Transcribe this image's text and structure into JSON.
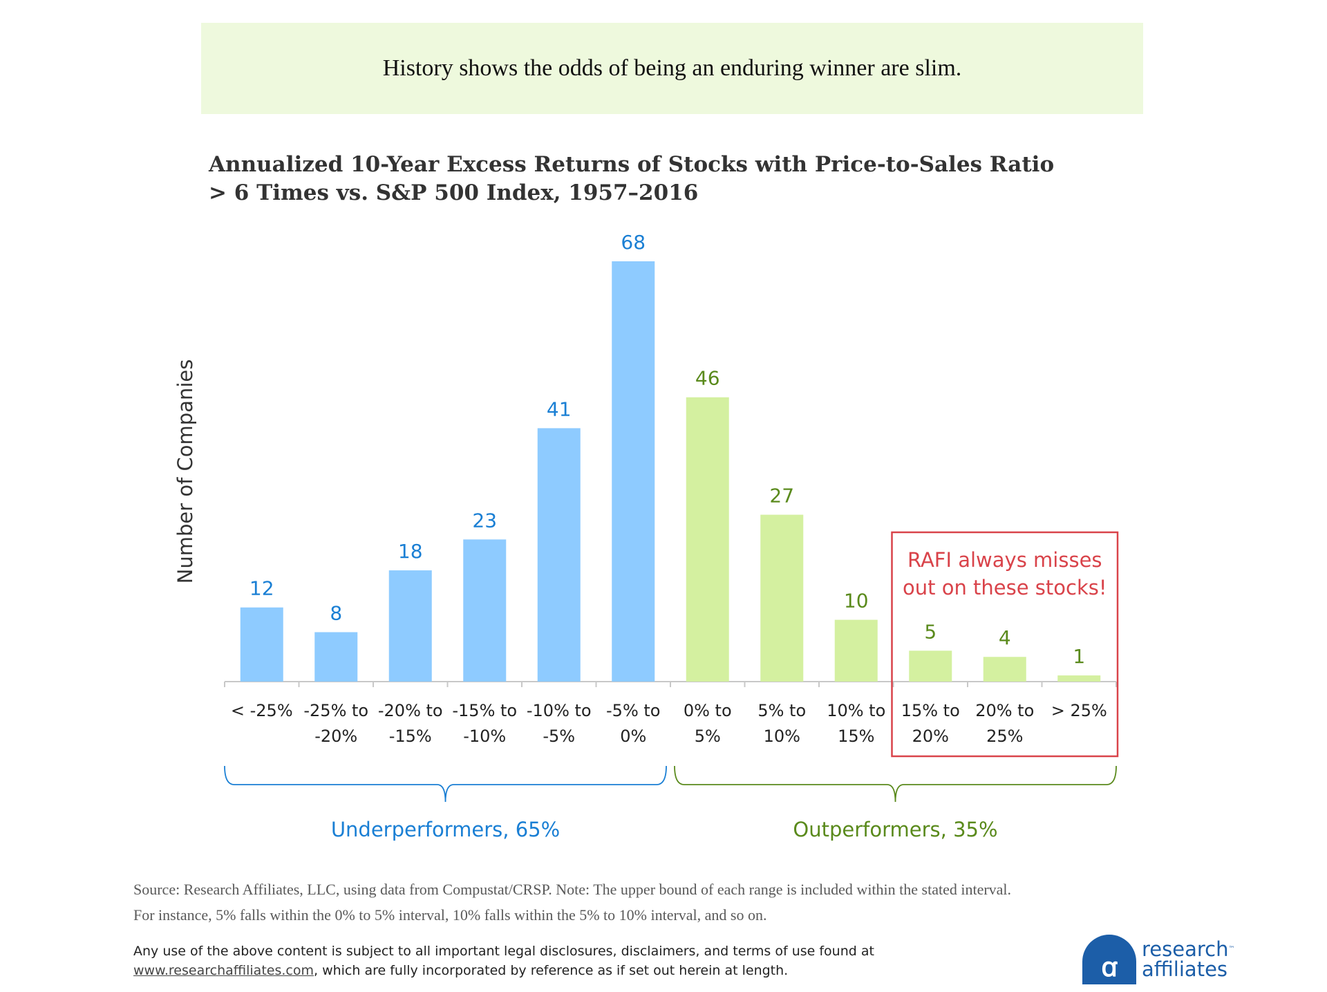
{
  "banner": "History shows the odds of being an enduring winner are slim.",
  "colors": {
    "underperform": "#8ecbff",
    "underperform_text": "#1a7fd4",
    "outperform": "#d4f0a0",
    "outperform_text": "#5a8a1c",
    "highlight": "#d9434a"
  },
  "chart_data": {
    "type": "bar",
    "title": "Annualized 10-Year Excess Returns of Stocks with Price-to-Sales Ratio > 6 Times vs. S&P 500 Index, 1957–2016",
    "title_lines": [
      "Annualized 10-Year Excess Returns of Stocks with Price-to-Sales Ratio",
      "> 6 Times vs. S&P 500 Index, 1957–2016"
    ],
    "ylabel": "Number of Companies",
    "xlabel": "",
    "categories": [
      [
        "< -25%"
      ],
      [
        "-25% to",
        "-20%"
      ],
      [
        "-20% to",
        "-15%"
      ],
      [
        "-15% to",
        "-10%"
      ],
      [
        "-10% to",
        "-5%"
      ],
      [
        "-5% to",
        "0%"
      ],
      [
        "0% to",
        "5%"
      ],
      [
        "5% to",
        "10%"
      ],
      [
        "10% to",
        "15%"
      ],
      [
        "15% to",
        "20%"
      ],
      [
        "20% to",
        "25%"
      ],
      [
        "> 25%"
      ]
    ],
    "values": [
      12,
      8,
      18,
      23,
      41,
      68,
      46,
      27,
      10,
      5,
      4,
      1
    ],
    "group": [
      "under",
      "under",
      "under",
      "under",
      "under",
      "under",
      "out",
      "out",
      "out",
      "out",
      "out",
      "out"
    ],
    "ylim": [
      0,
      70
    ],
    "grid": false,
    "groups": [
      {
        "label": "Underperformers, 65%",
        "from_index": 0,
        "to_index": 5
      },
      {
        "label": "Outperformers, 35%",
        "from_index": 6,
        "to_index": 11
      }
    ],
    "annotation": {
      "lines": [
        "RAFI always misses",
        "out on these stocks!"
      ],
      "from_index": 9,
      "to_index": 11
    }
  },
  "source_lines": [
    "Source: Research Affiliates, LLC, using data from Compustat/CRSP. Note: The upper bound of each range is included within the stated interval.",
    "For instance, 5% falls within the 0% to 5% interval, 10% falls within the 5% to 10% interval, and so on."
  ],
  "legal": {
    "line1": "Any use of the above content is subject to all important legal disclosures, disclaimers, and terms of use found at",
    "link": "www.researchaffiliates.com",
    "line2_rest": ", which are fully incorporated by reference as if set out herein at length."
  },
  "logo": {
    "mark": "ꭤ",
    "word1": "research",
    "tm": "™",
    "word2": "affiliates"
  }
}
